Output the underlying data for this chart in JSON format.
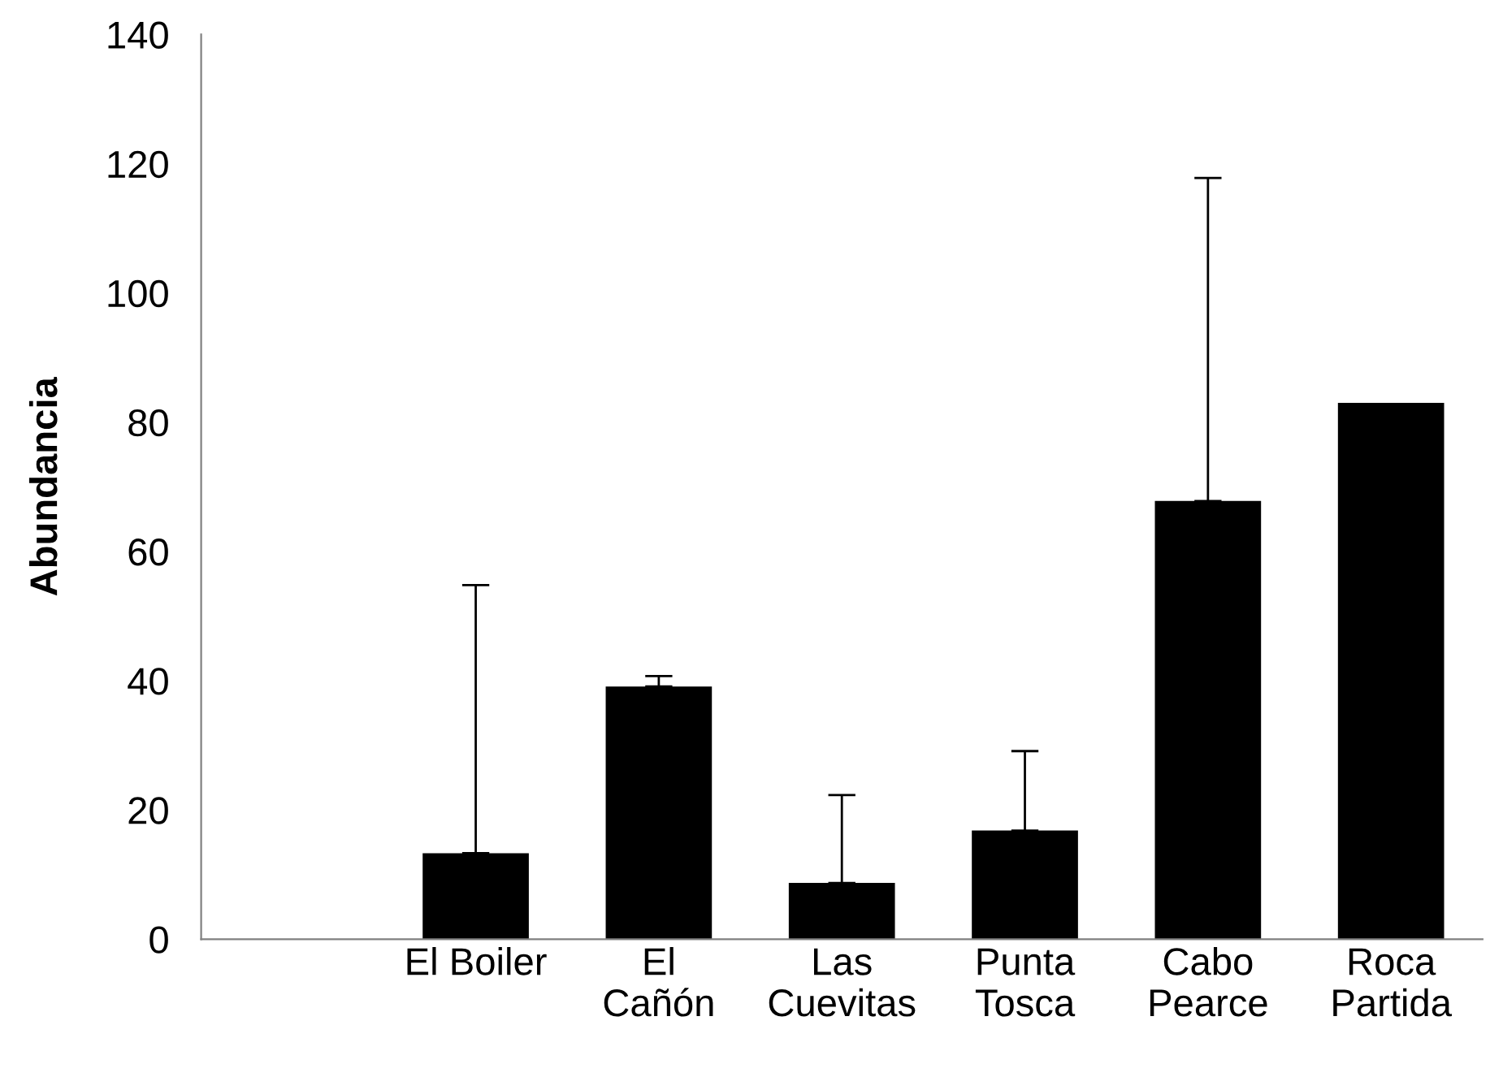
{
  "chart_data": {
    "type": "bar",
    "ylabel": "Abundancia",
    "categories": [
      null,
      "El Boiler",
      "El\nCañón",
      "Las\nCuevitas",
      "Punta\nTosca",
      "Cabo\nPearce",
      "Roca\nPartida"
    ],
    "values": [
      null,
      13.3,
      39.1,
      8.7,
      16.8,
      67.8,
      83
    ],
    "errors": [
      null,
      [
        13.3,
        54.8
      ],
      [
        39.1,
        40.7
      ],
      [
        8.7,
        22.3
      ],
      [
        16.8,
        29.1
      ],
      [
        67.8,
        117.8
      ],
      null
    ],
    "color": "#000000",
    "ylim": [
      0,
      140
    ],
    "yticks": [
      0,
      20,
      40,
      60,
      80,
      100,
      120,
      140
    ],
    "grid": false,
    "legend": false
  }
}
